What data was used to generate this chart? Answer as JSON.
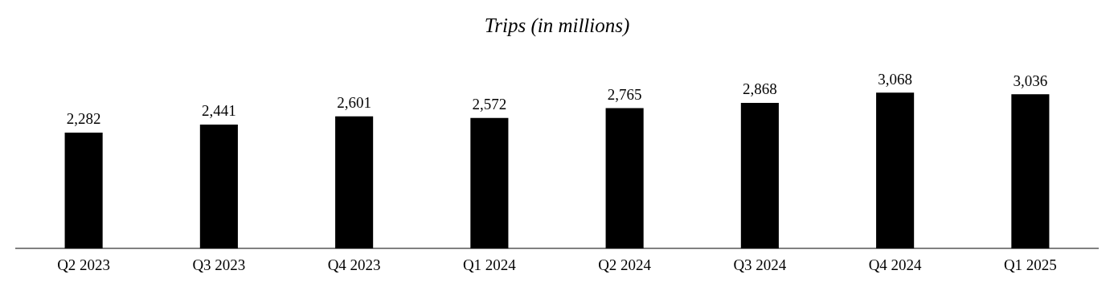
{
  "chart_data": {
    "type": "bar",
    "title": "Trips (in millions)",
    "categories": [
      "Q2 2023",
      "Q3 2023",
      "Q4 2023",
      "Q1 2024",
      "Q2 2024",
      "Q3 2024",
      "Q4 2024",
      "Q1 2025"
    ],
    "values": [
      2282,
      2441,
      2601,
      2572,
      2765,
      2868,
      3068,
      3036
    ],
    "value_labels": [
      "2,282",
      "2,441",
      "2,601",
      "2,572",
      "2,765",
      "2,868",
      "3,068",
      "3,036"
    ],
    "color": "#000000",
    "grid": false,
    "legend": false
  }
}
